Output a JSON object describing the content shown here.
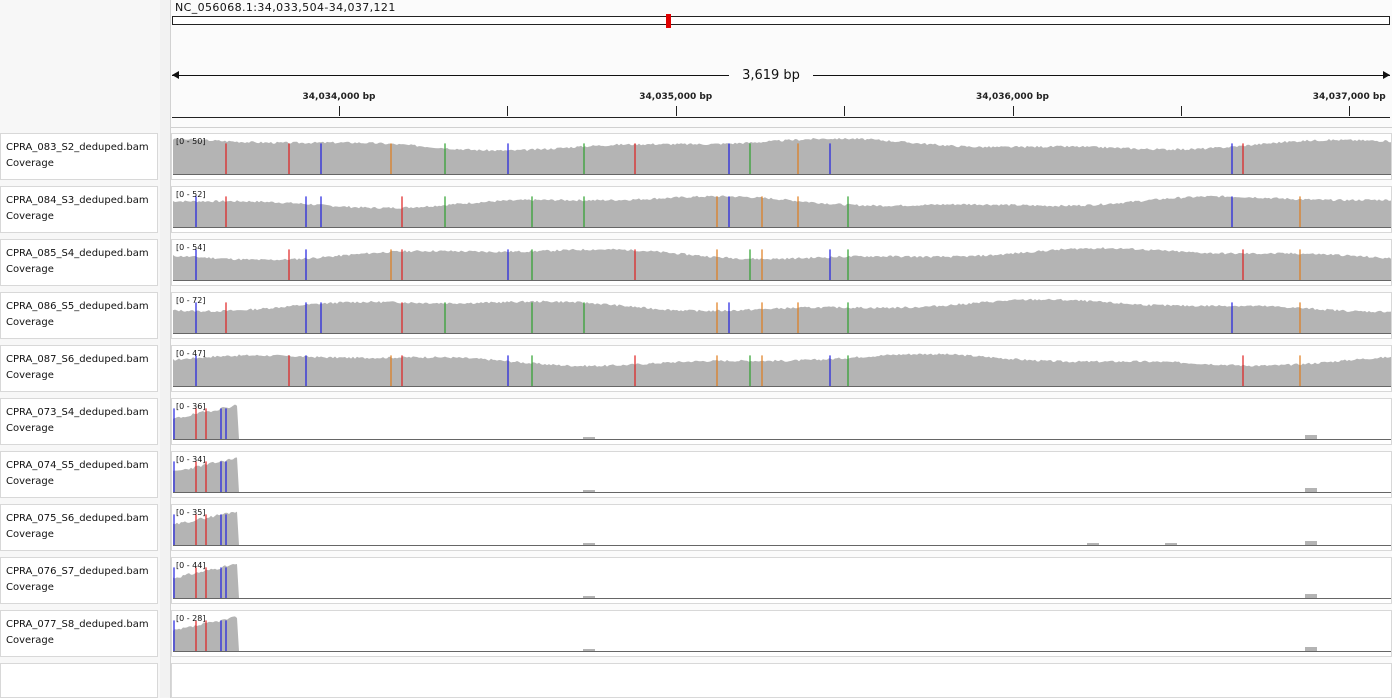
{
  "locus": "NC_056068.1:34,033,504-34,037,121",
  "span": {
    "label": "3,619 bp",
    "start": 34033504,
    "end": 34037121
  },
  "ticks": [
    {
      "pos": 34034000,
      "label": "34,034,000 bp"
    },
    {
      "pos": 34034500,
      "label": ""
    },
    {
      "pos": 34035000,
      "label": "34,035,000 bp"
    },
    {
      "pos": 34035500,
      "label": ""
    },
    {
      "pos": 34036000,
      "label": "34,036,000 bp"
    },
    {
      "pos": 34036500,
      "label": ""
    },
    {
      "pos": 34037000,
      "label": "34,037,000 bp"
    }
  ],
  "colors": {
    "coverage": "#b4b4b4",
    "A": "#2ca02c",
    "C": "#1f1fdf",
    "G": "#e07b1a",
    "T": "#e01f1f"
  },
  "tracks": [
    {
      "name": "CPRA_083_S2_deduped.bam Coverage",
      "range": "[0 - 50]",
      "type": "full",
      "seed": 3,
      "base": 0.82
    },
    {
      "name": "CPRA_084_S3_deduped.bam Coverage",
      "range": "[0 - 52]",
      "type": "full",
      "seed": 7,
      "base": 0.7
    },
    {
      "name": "CPRA_085_S4_deduped.bam Coverage",
      "range": "[0 - 54]",
      "type": "full",
      "seed": 11,
      "base": 0.72
    },
    {
      "name": "CPRA_086_S5_deduped.bam Coverage",
      "range": "[0 - 72]",
      "type": "full",
      "seed": 13,
      "base": 0.76
    },
    {
      "name": "CPRA_087_S6_deduped.bam Coverage",
      "range": "[0 - 47]",
      "type": "full",
      "seed": 17,
      "base": 0.72
    },
    {
      "name": "CPRA_073_S4_deduped.bam Coverage",
      "range": "[0 - 36]",
      "type": "sparse",
      "seed": 19,
      "base": 0.9
    },
    {
      "name": "CPRA_074_S5_deduped.bam Coverage",
      "range": "[0 - 34]",
      "type": "sparse",
      "seed": 23,
      "base": 0.9
    },
    {
      "name": "CPRA_075_S6_deduped.bam Coverage",
      "range": "[0 - 35]",
      "type": "sparse",
      "seed": 29,
      "base": 0.9
    },
    {
      "name": "CPRA_076_S7_deduped.bam Coverage",
      "range": "[0 - 44]",
      "type": "sparse",
      "seed": 31,
      "base": 0.9
    },
    {
      "name": "CPRA_077_S8_deduped.bam Coverage",
      "range": "[0 - 28]",
      "type": "sparse",
      "seed": 37,
      "base": 0.9
    }
  ]
}
